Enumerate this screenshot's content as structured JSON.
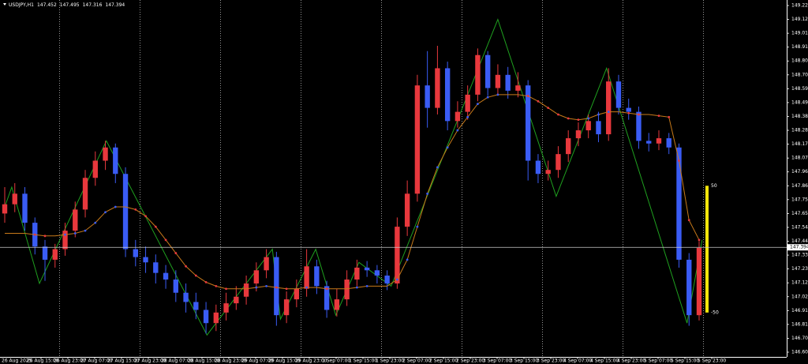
{
  "chart_data": {
    "type": "candlestick",
    "title": "USDJPY,H1",
    "quote": [
      147.452,
      147.495,
      147.316,
      147.394
    ],
    "last": 147.394,
    "up_color": "#e8383d",
    "down_color": "#3a5cf5",
    "zigzag_color": "#1fa01f",
    "ma_color": "#c87a1a",
    "ylim": [
      146.6,
      149.225
    ],
    "yticks": [
      {
        "value": 146.6,
        "label": "146.600"
      },
      {
        "value": 146.705,
        "label": "146.705"
      },
      {
        "value": 146.81,
        "label": "146.810"
      },
      {
        "value": 146.915,
        "label": "146.915"
      },
      {
        "value": 147.02,
        "label": "147.020"
      },
      {
        "value": 147.125,
        "label": "147.125"
      },
      {
        "value": 147.23,
        "label": "147.230"
      },
      {
        "value": 147.335,
        "label": "147.335"
      },
      {
        "value": 147.44,
        "label": "147.440"
      },
      {
        "value": 147.545,
        "label": "147.545"
      },
      {
        "value": 147.65,
        "label": "147.650"
      },
      {
        "value": 147.755,
        "label": "147.755"
      },
      {
        "value": 147.86,
        "label": "147.860"
      },
      {
        "value": 147.965,
        "label": "147.965"
      },
      {
        "value": 148.07,
        "label": "148.070"
      },
      {
        "value": 148.175,
        "label": "148.175"
      },
      {
        "value": 148.28,
        "label": "148.280"
      },
      {
        "value": 148.385,
        "label": "148.385"
      },
      {
        "value": 148.49,
        "label": "148.490"
      },
      {
        "value": 148.595,
        "label": "148.595"
      },
      {
        "value": 148.7,
        "label": "148.700"
      },
      {
        "value": 148.805,
        "label": "148.805"
      },
      {
        "value": 148.91,
        "label": "148.910"
      },
      {
        "value": 149.015,
        "label": "149.015"
      },
      {
        "value": 149.12,
        "label": "149.120"
      },
      {
        "value": 149.225,
        "label": "149.225"
      }
    ],
    "x_labels": [
      "26 Aug 2025",
      "26 Aug 15:00",
      "26 Aug 23:00",
      "27 Aug 07:00",
      "27 Aug 15:00",
      "27 Aug 23:00",
      "28 Aug 07:00",
      "28 Aug 15:00",
      "28 Aug 23:00",
      "29 Aug 07:00",
      "29 Aug 15:00",
      "29 Aug 23:00",
      "1 Sep 07:00",
      "1 Sep 15:00",
      "1 Sep 23:00",
      "2 Sep 07:00",
      "2 Sep 15:00",
      "2 Sep 23:00",
      "3 Sep 07:00",
      "3 Sep 15:00",
      "3 Sep 23:00",
      "4 Sep 07:00",
      "4 Sep 15:00",
      "4 Sep 23:00",
      "5 Sep 07:00",
      "5 Sep 15:00",
      "5 Sep 23:00"
    ],
    "open": [
      147.65,
      147.72,
      147.8,
      147.58,
      147.4,
      147.3,
      147.38,
      147.52,
      147.68,
      147.92,
      148.05,
      148.15,
      147.95,
      147.38,
      147.32,
      147.28,
      147.2,
      147.15,
      147.05,
      146.98,
      146.92,
      146.82,
      146.9,
      146.97,
      147.02,
      147.12,
      147.22,
      147.32,
      146.88,
      147.0,
      147.08,
      147.25,
      147.1,
      146.92,
      147.0,
      147.15,
      147.24,
      147.22,
      147.18,
      147.12,
      147.55,
      147.8,
      148.62,
      148.45,
      148.75,
      148.35,
      148.42,
      148.55,
      148.85,
      148.6,
      148.7,
      148.58,
      148.62,
      148.05,
      147.95,
      147.98,
      148.1,
      148.22,
      148.28,
      148.35,
      148.25,
      148.65,
      148.45,
      148.42,
      148.2,
      148.18,
      148.22,
      148.15,
      147.3,
      146.88
    ],
    "high": [
      147.85,
      147.88,
      147.85,
      147.62,
      147.45,
      147.42,
      147.58,
      147.74,
      147.98,
      148.12,
      148.2,
      148.18,
      148.0,
      147.45,
      147.4,
      147.34,
      147.26,
      147.22,
      147.12,
      147.05,
      146.98,
      146.96,
      147.05,
      147.1,
      147.18,
      147.28,
      147.38,
      147.36,
      147.06,
      147.15,
      147.38,
      147.3,
      147.14,
      147.08,
      147.22,
      147.3,
      147.29,
      147.26,
      147.22,
      147.62,
      147.9,
      148.7,
      148.88,
      148.92,
      148.8,
      148.5,
      148.62,
      148.9,
      148.88,
      148.78,
      148.76,
      148.72,
      148.66,
      148.1,
      148.05,
      148.16,
      148.28,
      148.34,
      148.4,
      148.42,
      148.75,
      148.7,
      148.52,
      148.46,
      148.26,
      148.28,
      148.26,
      148.18,
      147.35,
      147.44
    ],
    "low": [
      147.58,
      147.66,
      147.52,
      147.34,
      147.14,
      147.24,
      147.33,
      147.47,
      147.62,
      147.86,
      147.98,
      147.88,
      147.32,
      147.25,
      147.2,
      147.12,
      147.08,
      146.98,
      146.9,
      146.85,
      146.74,
      146.76,
      146.84,
      146.92,
      146.96,
      147.06,
      147.16,
      146.8,
      146.82,
      146.94,
      147.02,
      147.04,
      146.86,
      146.87,
      146.95,
      147.1,
      147.17,
      147.12,
      147.07,
      147.08,
      147.48,
      147.74,
      148.3,
      148.4,
      148.28,
      148.3,
      148.36,
      148.5,
      148.54,
      148.55,
      148.52,
      148.53,
      147.9,
      147.88,
      147.9,
      147.92,
      148.04,
      148.16,
      148.22,
      148.19,
      148.2,
      148.4,
      148.36,
      148.14,
      148.12,
      148.13,
      148.1,
      147.24,
      146.8,
      146.84
    ],
    "close": [
      147.72,
      147.8,
      147.58,
      147.4,
      147.3,
      147.38,
      147.52,
      147.68,
      147.92,
      148.05,
      148.15,
      147.95,
      147.38,
      147.32,
      147.28,
      147.2,
      147.15,
      147.05,
      146.98,
      146.92,
      146.82,
      146.9,
      146.97,
      147.02,
      147.12,
      147.22,
      147.32,
      146.88,
      147.0,
      147.08,
      147.25,
      147.1,
      146.92,
      147.0,
      147.15,
      147.24,
      147.22,
      147.18,
      147.12,
      147.55,
      147.8,
      148.62,
      148.45,
      148.75,
      148.35,
      148.42,
      148.55,
      148.85,
      148.6,
      148.7,
      148.58,
      148.62,
      148.05,
      147.95,
      147.98,
      148.1,
      148.22,
      148.28,
      148.35,
      148.25,
      148.65,
      148.45,
      148.42,
      148.2,
      148.18,
      148.22,
      148.15,
      147.3,
      146.88,
      147.39
    ],
    "ma": [
      147.5,
      147.5,
      147.5,
      147.49,
      147.48,
      147.48,
      147.49,
      147.5,
      147.52,
      147.58,
      147.66,
      147.7,
      147.7,
      147.68,
      147.63,
      147.55,
      147.45,
      147.35,
      147.25,
      147.18,
      147.13,
      147.1,
      147.08,
      147.08,
      147.08,
      147.09,
      147.1,
      147.09,
      147.08,
      147.08,
      147.09,
      147.09,
      147.08,
      147.08,
      147.08,
      147.09,
      147.1,
      147.1,
      147.1,
      147.15,
      147.3,
      147.55,
      147.8,
      148.0,
      148.15,
      148.28,
      148.38,
      148.48,
      148.53,
      148.55,
      148.55,
      148.55,
      148.54,
      148.5,
      148.45,
      148.4,
      148.37,
      148.36,
      148.37,
      148.4,
      148.42,
      148.42,
      148.41,
      148.4,
      148.4,
      148.39,
      148.38,
      148.05,
      147.6,
      147.45
    ],
    "zigzag": {
      "x": [
        0,
        0.7,
        3.45,
        10.1,
        20.1,
        26.6,
        27.4,
        30.9,
        32.9,
        35.2,
        38.4,
        49,
        54.8,
        59.8,
        67.8,
        69.3
      ],
      "values": [
        147.7,
        147.85,
        147.12,
        148.2,
        146.73,
        147.38,
        146.85,
        147.38,
        146.88,
        147.28,
        147.1,
        149.12,
        147.78,
        148.75,
        146.82,
        147.45
      ]
    },
    "signal": {
      "top": 147.86,
      "bottom": 146.9,
      "labels": [
        "50",
        "-50"
      ],
      "color": "#f5e60a"
    }
  }
}
